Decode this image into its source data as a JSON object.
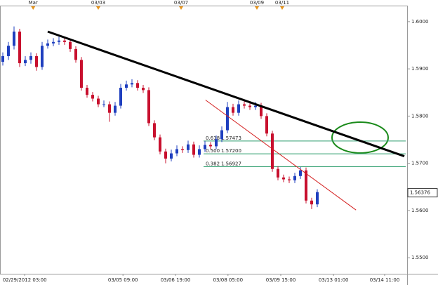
{
  "chart_data": {
    "type": "candlestick",
    "up_color": "#1f3fbf",
    "down_color": "#c8102e",
    "open": [
      1.5915,
      1.5927,
      1.5949,
      1.5979,
      1.5912,
      1.5919,
      1.5927,
      1.5904,
      1.5949,
      1.5954,
      1.5957,
      1.596,
      1.5957,
      1.5942,
      1.5919,
      1.586,
      1.5845,
      1.5837,
      1.5825,
      1.5825,
      1.5807,
      1.5822,
      1.586,
      1.5867,
      1.587,
      1.586,
      1.5855,
      1.5785,
      1.5755,
      1.5725,
      1.571,
      1.5721,
      1.573,
      1.5728,
      1.574,
      1.5718,
      1.573,
      1.5739,
      1.5736,
      1.5751,
      1.577,
      1.5819,
      1.5807,
      1.5825,
      1.5822,
      1.5819,
      1.5822,
      1.58,
      1.5763,
      1.5688,
      1.567,
      1.5666,
      1.5664,
      1.5673,
      1.5685,
      1.5621,
      1.5613
    ],
    "high": [
      1.5935,
      1.5957,
      1.599,
      1.5985,
      1.5927,
      1.5935,
      1.5933,
      1.5957,
      1.5962,
      1.5965,
      1.5968,
      1.5966,
      1.5963,
      1.5948,
      1.5925,
      1.5866,
      1.5851,
      1.5843,
      1.5833,
      1.5831,
      1.583,
      1.5868,
      1.5875,
      1.5878,
      1.5876,
      1.5866,
      1.5861,
      1.5791,
      1.5761,
      1.5731,
      1.5729,
      1.5738,
      1.5736,
      1.5748,
      1.5746,
      1.5738,
      1.5747,
      1.5745,
      1.5759,
      1.5778,
      1.583,
      1.5826,
      1.5833,
      1.5831,
      1.5828,
      1.583,
      1.5828,
      1.5806,
      1.5769,
      1.5694,
      1.5676,
      1.5672,
      1.568,
      1.5692,
      1.5691,
      1.5627,
      1.5645
    ],
    "low": [
      1.5907,
      1.5919,
      1.5941,
      1.5904,
      1.5906,
      1.5911,
      1.5896,
      1.5898,
      1.5943,
      1.5948,
      1.5951,
      1.5951,
      1.5936,
      1.5913,
      1.5854,
      1.5839,
      1.5831,
      1.5819,
      1.5819,
      1.5788,
      1.5801,
      1.5816,
      1.5854,
      1.5861,
      1.5854,
      1.5849,
      1.5779,
      1.5749,
      1.5719,
      1.57,
      1.5704,
      1.5715,
      1.5722,
      1.5722,
      1.5712,
      1.5712,
      1.5724,
      1.573,
      1.573,
      1.5745,
      1.5764,
      1.5801,
      1.5801,
      1.5816,
      1.5813,
      1.5813,
      1.5794,
      1.5757,
      1.5682,
      1.5664,
      1.566,
      1.5658,
      1.5658,
      1.5667,
      1.5615,
      1.5603,
      1.5607
    ],
    "close": [
      1.5927,
      1.5949,
      1.5979,
      1.5912,
      1.5919,
      1.5927,
      1.5904,
      1.5949,
      1.5954,
      1.5957,
      1.596,
      1.5957,
      1.5942,
      1.5919,
      1.586,
      1.5845,
      1.5837,
      1.5825,
      1.5825,
      1.5807,
      1.5822,
      1.586,
      1.5867,
      1.587,
      1.586,
      1.5855,
      1.5785,
      1.5755,
      1.5725,
      1.571,
      1.5721,
      1.573,
      1.5728,
      1.574,
      1.5718,
      1.573,
      1.5739,
      1.5736,
      1.5751,
      1.577,
      1.5819,
      1.5807,
      1.5825,
      1.5822,
      1.5819,
      1.5822,
      1.58,
      1.5763,
      1.5688,
      1.567,
      1.5666,
      1.5664,
      1.5673,
      1.5685,
      1.5621,
      1.5613,
      1.5639
    ],
    "xlim": [
      -0.5,
      72
    ],
    "ylim": [
      1.5466,
      1.6034
    ],
    "yticks": [
      {
        "value": 1.6,
        "label": "1.6000"
      },
      {
        "value": 1.59,
        "label": "1.5900"
      },
      {
        "value": 1.58,
        "label": "1.5800"
      },
      {
        "value": 1.57,
        "label": "1.5700"
      },
      {
        "value": 1.56,
        "label": "1.5600"
      },
      {
        "value": 1.55,
        "label": "1.5500"
      }
    ],
    "xticks": [
      {
        "value": 3.9,
        "label": "02/29/2012 03:00"
      },
      {
        "value": 21.4,
        "label": "03/05 09:00"
      },
      {
        "value": 30.75,
        "label": "03/06 19:00"
      },
      {
        "value": 40.1,
        "label": "03/08 05:00"
      },
      {
        "value": 49.5,
        "label": "03/09 15:00"
      },
      {
        "value": 58.9,
        "label": "03/13 01:00"
      },
      {
        "value": 68,
        "label": "03/14 11:00"
      }
    ],
    "top_ticks": [
      {
        "value": 5.4,
        "label": "Mar"
      },
      {
        "value": 17,
        "label": "03/03"
      },
      {
        "value": 31.75,
        "label": "03/07"
      },
      {
        "value": 45.25,
        "label": "03/09"
      },
      {
        "value": 49.75,
        "label": "03/11"
      }
    ],
    "fib_levels": [
      {
        "ratio": "0.618",
        "value": 1.57473,
        "label": "1.57473"
      },
      {
        "ratio": "0.500",
        "value": 1.572,
        "label": "1.57200"
      },
      {
        "ratio": "0.382",
        "value": 1.56927,
        "label": "1.56927"
      }
    ],
    "fib_color": "#2e9e6e",
    "trendlines": [
      {
        "color": "#000000",
        "x": [
          8,
          71.5
        ],
        "y": [
          1.5979,
          1.5715
        ]
      },
      {
        "color": "#d42020",
        "x": [
          36.1,
          62.9
        ],
        "y": [
          1.5834,
          1.5601
        ]
      }
    ],
    "last_price": 1.56376,
    "last_label": "1.56376"
  }
}
